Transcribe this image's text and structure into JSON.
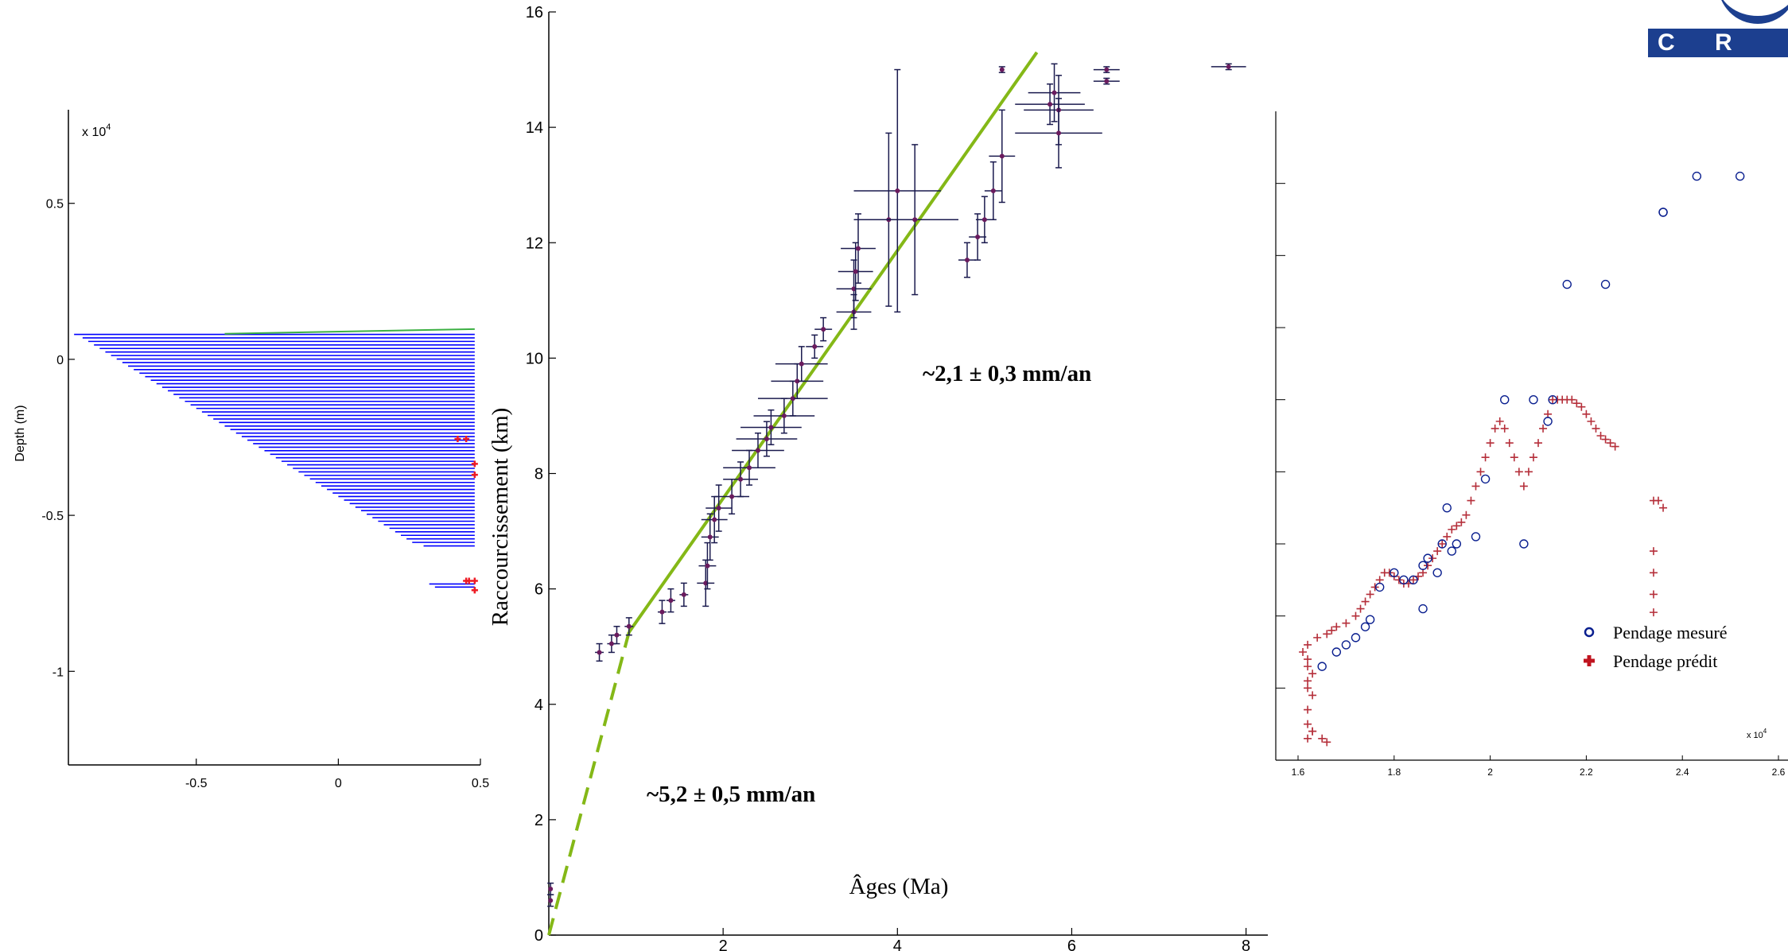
{
  "logo": {
    "text": "C R P G",
    "color": "#1c3f8f"
  },
  "chart_data": [
    {
      "type": "line",
      "title": "",
      "xlabel": "",
      "ylabel": "Depth (m)",
      "exponent_label": "x 10",
      "exponent_sup": "4",
      "xlim": [
        -0.95,
        0.5
      ],
      "ylim": [
        -1.3,
        0.8
      ],
      "xticks": [
        -0.5,
        0,
        0.5
      ],
      "xtick_labels": [
        "-0.5",
        "0",
        "0.5"
      ],
      "yticks": [
        0.5,
        0,
        -0.5,
        -1
      ],
      "ytick_labels": [
        "0.5",
        "0",
        "-0.5",
        "-1"
      ],
      "series": [
        {
          "color": "#0000ff",
          "left_edges": [
            -0.93,
            -0.9,
            -0.88,
            -0.86,
            -0.84,
            -0.82,
            -0.8,
            -0.78,
            -0.76,
            -0.74,
            -0.72,
            -0.7,
            -0.68,
            -0.66,
            -0.64,
            -0.62,
            -0.6,
            -0.58,
            -0.56,
            -0.54,
            -0.52,
            -0.5,
            -0.48,
            -0.46,
            -0.44,
            -0.42,
            -0.4,
            -0.38,
            -0.36,
            -0.34,
            -0.32,
            -0.3,
            -0.28,
            -0.26,
            -0.24,
            -0.22,
            -0.2,
            -0.18,
            -0.16,
            -0.14,
            -0.12,
            -0.1,
            -0.08,
            -0.06,
            -0.04,
            -0.02,
            0.0,
            0.02,
            0.04,
            0.06,
            0.08,
            0.1,
            0.12,
            0.14,
            0.16,
            0.18,
            0.2,
            0.22,
            0.24,
            0.26,
            0.3
          ],
          "depth_top": 0.08,
          "depth_step": -0.0113,
          "right_edge": 0.48
        },
        {
          "color": "#3cb043",
          "x": [
            -0.4,
            0.48
          ],
          "y": [
            0.082,
            0.097
          ]
        },
        {
          "color": "#ee1c25",
          "x": [
            0.42,
            0.45,
            0.48,
            0.48,
            0.45,
            0.48,
            0.48,
            0.46,
            0.48
          ],
          "y": [
            -0.255,
            -0.255,
            -0.335,
            -0.37,
            -0.71,
            -0.71,
            -0.74,
            -0.71,
            -0.74
          ]
        }
      ],
      "bottom_bars": {
        "x": [
          0.32,
          0.48
        ],
        "y": [
          -0.72,
          -0.73
        ]
      }
    },
    {
      "type": "scatter",
      "title": "",
      "xlabel": "Âges (Ma)",
      "ylabel": "Raccourcissement (km)",
      "xlim": [
        0,
        8.25
      ],
      "ylim": [
        0,
        16
      ],
      "xticks": [
        2,
        4,
        6,
        8
      ],
      "xtick_labels": [
        "2",
        "4",
        "6",
        "8"
      ],
      "yticks": [
        0,
        2,
        4,
        6,
        8,
        10,
        12,
        14,
        16
      ],
      "ytick_labels": [
        "0",
        "2",
        "4",
        "6",
        "8",
        "10",
        "12",
        "14",
        "16"
      ],
      "points": [
        {
          "x": 0.58,
          "y": 4.9,
          "xe": 0.05,
          "ye": 0.15
        },
        {
          "x": 0.72,
          "y": 5.05,
          "xe": 0.05,
          "ye": 0.15
        },
        {
          "x": 0.78,
          "y": 5.2,
          "xe": 0.05,
          "ye": 0.15
        },
        {
          "x": 0.92,
          "y": 5.35,
          "xe": 0.05,
          "ye": 0.15
        },
        {
          "x": 1.3,
          "y": 5.6,
          "xe": 0.05,
          "ye": 0.2
        },
        {
          "x": 1.4,
          "y": 5.8,
          "xe": 0.05,
          "ye": 0.2
        },
        {
          "x": 1.55,
          "y": 5.9,
          "xe": 0.05,
          "ye": 0.2
        },
        {
          "x": 1.8,
          "y": 6.1,
          "xe": 0.1,
          "ye": 0.4
        },
        {
          "x": 1.82,
          "y": 6.4,
          "xe": 0.1,
          "ye": 0.4
        },
        {
          "x": 1.85,
          "y": 6.9,
          "xe": 0.1,
          "ye": 0.4
        },
        {
          "x": 1.9,
          "y": 7.2,
          "xe": 0.15,
          "ye": 0.4
        },
        {
          "x": 1.95,
          "y": 7.4,
          "xe": 0.15,
          "ye": 0.4
        },
        {
          "x": 2.1,
          "y": 7.6,
          "xe": 0.2,
          "ye": 0.3
        },
        {
          "x": 2.2,
          "y": 7.9,
          "xe": 0.2,
          "ye": 0.3
        },
        {
          "x": 2.3,
          "y": 8.1,
          "xe": 0.3,
          "ye": 0.3
        },
        {
          "x": 2.4,
          "y": 8.4,
          "xe": 0.3,
          "ye": 0.3
        },
        {
          "x": 2.5,
          "y": 8.6,
          "xe": 0.35,
          "ye": 0.3
        },
        {
          "x": 2.55,
          "y": 8.8,
          "xe": 0.35,
          "ye": 0.3
        },
        {
          "x": 2.7,
          "y": 9.0,
          "xe": 0.35,
          "ye": 0.3
        },
        {
          "x": 2.8,
          "y": 9.3,
          "xe": 0.4,
          "ye": 0.3
        },
        {
          "x": 2.85,
          "y": 9.6,
          "xe": 0.3,
          "ye": 0.3
        },
        {
          "x": 2.9,
          "y": 9.9,
          "xe": 0.3,
          "ye": 0.3
        },
        {
          "x": 3.05,
          "y": 10.2,
          "xe": 0.1,
          "ye": 0.2
        },
        {
          "x": 3.15,
          "y": 10.5,
          "xe": 0.1,
          "ye": 0.2
        },
        {
          "x": 3.5,
          "y": 10.8,
          "xe": 0.2,
          "ye": 0.3
        },
        {
          "x": 3.5,
          "y": 11.2,
          "xe": 0.2,
          "ye": 0.5
        },
        {
          "x": 3.52,
          "y": 11.5,
          "xe": 0.2,
          "ye": 0.5
        },
        {
          "x": 3.55,
          "y": 11.9,
          "xe": 0.2,
          "ye": 0.6
        },
        {
          "x": 3.9,
          "y": 12.4,
          "xe": 0.4,
          "ye": 1.5
        },
        {
          "x": 4.0,
          "y": 12.9,
          "xe": 0.5,
          "ye": 2.1
        },
        {
          "x": 4.2,
          "y": 12.4,
          "xe": 0.5,
          "ye": 1.3
        },
        {
          "x": 4.8,
          "y": 11.7,
          "xe": 0.1,
          "ye": 0.3
        },
        {
          "x": 4.92,
          "y": 12.1,
          "xe": 0.1,
          "ye": 0.4
        },
        {
          "x": 5.0,
          "y": 12.4,
          "xe": 0.1,
          "ye": 0.4
        },
        {
          "x": 5.1,
          "y": 12.9,
          "xe": 0.1,
          "ye": 0.5
        },
        {
          "x": 5.2,
          "y": 13.5,
          "xe": 0.15,
          "ye": 0.8
        },
        {
          "x": 5.2,
          "y": 15.0,
          "xe": 0.0,
          "ye": 0.05
        },
        {
          "x": 5.75,
          "y": 14.4,
          "xe": 0.4,
          "ye": 0.35
        },
        {
          "x": 5.8,
          "y": 14.6,
          "xe": 0.3,
          "ye": 0.5
        },
        {
          "x": 5.85,
          "y": 14.3,
          "xe": 0.4,
          "ye": 0.6
        },
        {
          "x": 5.85,
          "y": 13.9,
          "xe": 0.5,
          "ye": 0.6
        },
        {
          "x": 6.4,
          "y": 15.0,
          "xe": 0.15,
          "ye": 0.05
        },
        {
          "x": 6.4,
          "y": 14.8,
          "xe": 0.15,
          "ye": 0.05
        },
        {
          "x": 7.8,
          "y": 15.05,
          "xe": 0.2,
          "ye": 0.05
        },
        {
          "x": 0.02,
          "y": 0.8,
          "xe": 0.0,
          "ye": 0.1
        },
        {
          "x": 0.02,
          "y": 0.6,
          "xe": 0.0,
          "ye": 0.1
        }
      ],
      "fit_lines": [
        {
          "color": "#84b817",
          "x": [
            0.92,
            5.6
          ],
          "y": [
            5.25,
            15.3
          ],
          "style": "solid"
        },
        {
          "color": "#84b817",
          "x": [
            0.0,
            0.92
          ],
          "y": [
            0.0,
            5.25
          ],
          "style": "dashed"
        }
      ],
      "annotations": [
        "~2,1 ± 0,3 mm/an",
        "~5,2 ± 0,5 mm/an"
      ]
    },
    {
      "type": "scatter",
      "title": "",
      "xlabel": "",
      "ylabel": "",
      "exponent_label": "x 10",
      "exponent_sup": "4",
      "xlim": [
        1.6,
        2.6
      ],
      "ylim": [
        0,
        9
      ],
      "xticks": [
        1.6,
        1.8,
        2,
        2.2,
        2.4,
        2.6
      ],
      "xtick_labels": [
        "1.6",
        "1.8",
        "2",
        "2.2",
        "2.4",
        "2.6"
      ],
      "yticks": [
        1,
        2,
        3,
        4,
        5,
        6,
        7,
        8
      ],
      "ytick_labels": [],
      "series": [
        {
          "name": "Pendage mesuré",
          "color": "#0a1f8f",
          "marker": "circle",
          "x": [
            1.65,
            1.68,
            1.7,
            1.72,
            1.74,
            1.75,
            1.77,
            1.8,
            1.82,
            1.84,
            1.86,
            1.87,
            1.89,
            1.9,
            1.91,
            1.92,
            1.93,
            1.97,
            1.99,
            2.03,
            2.07,
            2.09,
            2.12,
            2.13,
            2.16,
            2.24,
            2.36,
            2.36,
            2.43,
            2.52,
            1.86
          ],
          "y": [
            1.3,
            1.5,
            1.6,
            1.7,
            1.85,
            1.95,
            2.4,
            2.6,
            2.5,
            2.5,
            2.7,
            2.8,
            2.6,
            3.0,
            3.5,
            2.9,
            3.0,
            3.1,
            3.9,
            5.0,
            3.0,
            5.0,
            4.7,
            5.0,
            6.6,
            6.6,
            7.6,
            7.6,
            8.1,
            8.1,
            2.1
          ]
        },
        {
          "name": "Pendage prédit",
          "color": "#b52f3a",
          "marker": "plus",
          "x": [
            1.62,
            1.63,
            1.62,
            1.62,
            1.63,
            1.62,
            1.62,
            1.63,
            1.62,
            1.62,
            1.61,
            1.62,
            1.64,
            1.66,
            1.67,
            1.68,
            1.7,
            1.72,
            1.73,
            1.74,
            1.75,
            1.76,
            1.77,
            1.78,
            1.79,
            1.8,
            1.81,
            1.82,
            1.83,
            1.84,
            1.85,
            1.86,
            1.87,
            1.88,
            1.89,
            1.9,
            1.91,
            1.92,
            1.93,
            1.94,
            1.95,
            1.96,
            1.97,
            1.98,
            1.99,
            2.0,
            2.01,
            2.02,
            2.03,
            2.04,
            2.05,
            2.06,
            2.07,
            2.08,
            2.09,
            2.1,
            2.11,
            2.12,
            2.13,
            2.14,
            2.15,
            2.16,
            2.17,
            2.18,
            2.19,
            2.2,
            2.21,
            2.22,
            2.23,
            2.24,
            2.25,
            2.26,
            2.34,
            2.35,
            2.36,
            2.34,
            2.34,
            2.34,
            2.34,
            1.63,
            1.65,
            1.66
          ],
          "y": [
            0.3,
            0.4,
            0.5,
            0.7,
            0.9,
            1.0,
            1.1,
            1.2,
            1.3,
            1.4,
            1.5,
            1.6,
            1.7,
            1.75,
            1.8,
            1.85,
            1.9,
            2.0,
            2.1,
            2.2,
            2.3,
            2.4,
            2.5,
            2.6,
            2.6,
            2.55,
            2.5,
            2.45,
            2.45,
            2.5,
            2.55,
            2.6,
            2.7,
            2.8,
            2.9,
            3.0,
            3.1,
            3.2,
            3.25,
            3.3,
            3.4,
            3.6,
            3.8,
            4.0,
            4.2,
            4.4,
            4.6,
            4.7,
            4.6,
            4.4,
            4.2,
            4.0,
            3.8,
            4.0,
            4.2,
            4.4,
            4.6,
            4.8,
            5.0,
            5.0,
            5.0,
            5.0,
            5.0,
            4.95,
            4.9,
            4.8,
            4.7,
            4.6,
            4.5,
            4.45,
            4.4,
            4.35,
            3.6,
            3.6,
            3.5,
            2.9,
            2.6,
            2.3,
            2.05,
            0.4,
            0.3,
            0.25
          ]
        }
      ]
    }
  ]
}
